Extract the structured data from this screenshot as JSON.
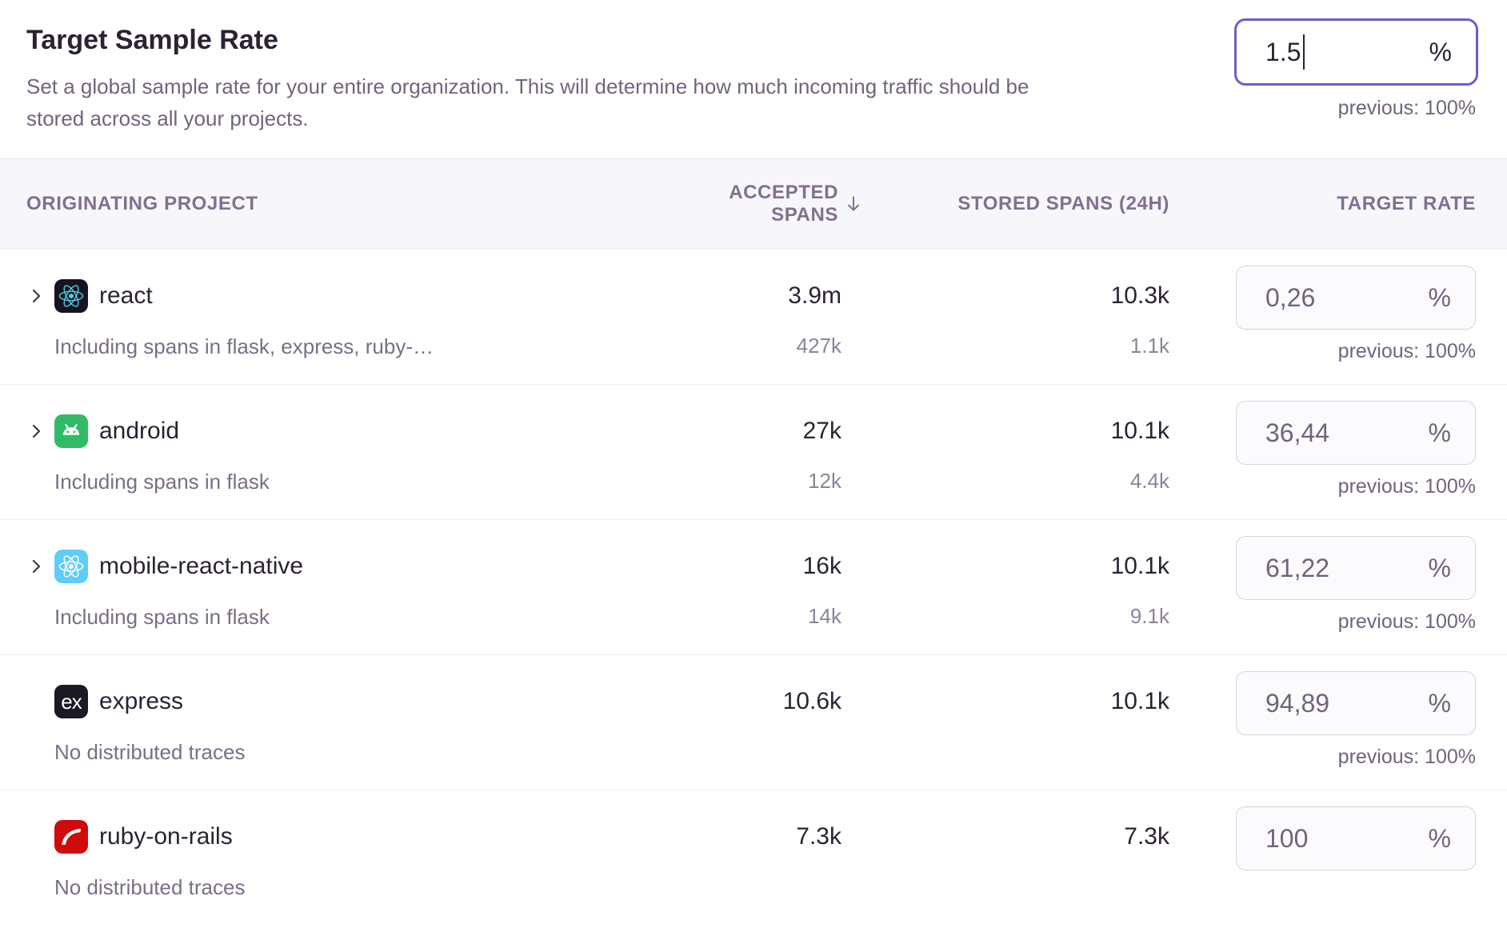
{
  "header": {
    "title": "Target Sample Rate",
    "description": "Set a global sample rate for your entire organization. This will determine how much incoming traffic should be stored across all your projects.",
    "input": {
      "value": "1.5",
      "suffix": "%"
    },
    "previous": "previous: 100%"
  },
  "table": {
    "columns": [
      "ORIGINATING PROJECT",
      "ACCEPTED SPANS",
      "STORED SPANS (24H)",
      "TARGET RATE"
    ],
    "sort": {
      "column": "ACCEPTED SPANS",
      "direction": "descending",
      "icon": "arrow-down"
    },
    "rows": [
      {
        "name": "react",
        "platform": "react",
        "expandable": true,
        "sub": "Including spans in flask, express, ruby-…",
        "accepted": "3.9m",
        "accepted_sub": "427k",
        "stored": "10.3k",
        "stored_sub": "1.1k",
        "rate": "0,26",
        "suffix": "%",
        "previous": "previous: 100%"
      },
      {
        "name": "android",
        "platform": "android",
        "expandable": true,
        "sub": "Including spans in flask",
        "accepted": "27k",
        "accepted_sub": "12k",
        "stored": "10.1k",
        "stored_sub": "4.4k",
        "rate": "36,44",
        "suffix": "%",
        "previous": "previous: 100%"
      },
      {
        "name": "mobile-react-native",
        "platform": "react-native",
        "expandable": true,
        "sub": "Including spans in flask",
        "accepted": "16k",
        "accepted_sub": "14k",
        "stored": "10.1k",
        "stored_sub": "9.1k",
        "rate": "61,22",
        "suffix": "%",
        "previous": "previous: 100%"
      },
      {
        "name": "express",
        "platform": "express",
        "expandable": false,
        "sub": "No distributed traces",
        "accepted": "10.6k",
        "accepted_sub": "",
        "stored": "10.1k",
        "stored_sub": "",
        "rate": "94,89",
        "suffix": "%",
        "previous": "previous: 100%"
      },
      {
        "name": "ruby-on-rails",
        "platform": "rails",
        "expandable": false,
        "sub": "No distributed traces",
        "accepted": "7.3k",
        "accepted_sub": "",
        "stored": "7.3k",
        "stored_sub": "",
        "rate": "100",
        "suffix": "%",
        "previous": ""
      }
    ]
  },
  "colors": {
    "accent_purple": "#6d5fc7",
    "heading_text": "#2b2233",
    "muted_text": "#71637e",
    "table_header_text": "#80708f",
    "table_header_bg": "#f7f6fa",
    "row_divider": "#f0edf3",
    "input_border": "#d8d2de",
    "input_bg": "#fbfafc",
    "react_icon_bg": "#16151f",
    "react_icon_fg": "#58c4dc",
    "android_icon_bg": "#32bb66",
    "react_native_icon_bg": "#5fcdf7",
    "express_icon_bg": "#1a1924",
    "rails_icon_bg": "#d00b0b"
  }
}
